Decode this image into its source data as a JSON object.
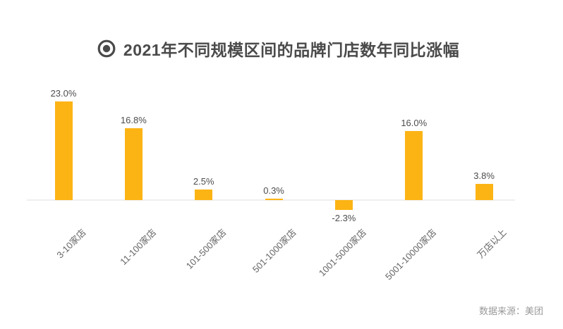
{
  "page": {
    "background": "#FFFFFF"
  },
  "header": {
    "icon": "target-icon",
    "title": "2021年不同规模区间的品牌门店数年同比涨幅"
  },
  "footer": {
    "source": "数据来源：美团"
  },
  "chart_data": {
    "type": "bar",
    "title": "2021年不同规模区间的品牌门店数年同比涨幅",
    "categories": [
      "3-10家店",
      "11-100家店",
      "101-500家店",
      "501-1000家店",
      "1001-5000家店",
      "5001-10000家店",
      "万店以上"
    ],
    "values": [
      23.0,
      16.8,
      2.5,
      0.3,
      -2.3,
      16.0,
      3.8
    ],
    "value_labels": [
      "23.0%",
      "16.8%",
      "2.5%",
      "0.3%",
      "-2.3%",
      "16.0%",
      "3.8%"
    ],
    "xlabel": "",
    "ylabel": "",
    "ylim": [
      -5,
      25
    ],
    "grid": false,
    "legend": "none",
    "x_label_rotation_deg": 45,
    "source": "数据来源：美团",
    "colors": {
      "bar": "#FCB415",
      "axis_line": "#EFEFEF",
      "title_text": "#4A4A4A",
      "value_label_text": "#4D4D4D",
      "category_label_text": "#666666",
      "source_text": "#999999"
    }
  }
}
